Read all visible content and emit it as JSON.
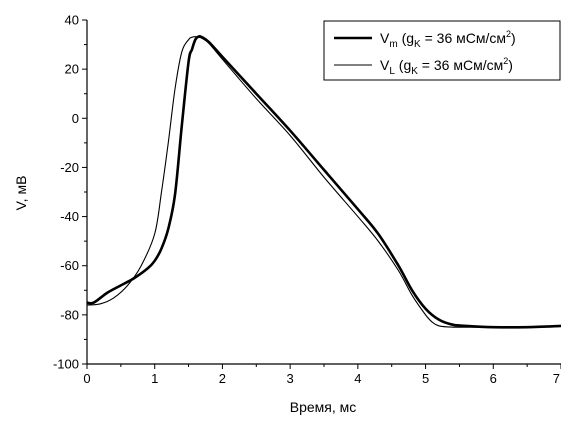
{
  "chart_data": {
    "type": "line",
    "title": "",
    "xlabel": "Время, мс",
    "ylabel": "V, мВ",
    "xlim": [
      0,
      7
    ],
    "ylim": [
      -100,
      40
    ],
    "x_ticks": [
      0,
      1,
      2,
      3,
      4,
      5,
      6,
      7
    ],
    "y_ticks": [
      -100,
      -80,
      -60,
      -40,
      -20,
      0,
      20,
      40
    ],
    "legend_placement": "top-right",
    "series": [
      {
        "name": "Vm (gK = 36 мСм/см²)",
        "legend_main": "V",
        "legend_sub": "m",
        "legend_text": " (g",
        "legend_sub2": "K",
        "legend_text2": " = 36 мСм/см",
        "legend_sup": "2",
        "legend_close": ")",
        "color": "#000000",
        "line_weight": "thick",
        "x": [
          0,
          0.1,
          0.3,
          0.5,
          0.7,
          0.9,
          1.0,
          1.1,
          1.2,
          1.3,
          1.4,
          1.5,
          1.55,
          1.6,
          1.65,
          1.7,
          1.8,
          2.0,
          2.5,
          3.0,
          3.5,
          4.0,
          4.3,
          4.6,
          4.8,
          5.0,
          5.2,
          5.4,
          5.6,
          6.0,
          6.5,
          7.0
        ],
        "y": [
          -75,
          -75,
          -71,
          -68,
          -65,
          -61,
          -58,
          -53,
          -45,
          -31,
          -3,
          23,
          28,
          32,
          33.3,
          33,
          31,
          25,
          10,
          -5,
          -21,
          -37,
          -47,
          -60,
          -70,
          -77.5,
          -82,
          -84,
          -84.5,
          -85,
          -85,
          -84.5
        ]
      },
      {
        "name": "VL (gK = 36 мСм/см²)",
        "legend_main": "V",
        "legend_sub": "L",
        "legend_text": " (g",
        "legend_sub2": "K",
        "legend_text2": " = 36 мСм/см",
        "legend_sup": "2",
        "legend_close": ")",
        "color": "#000000",
        "line_weight": "thin",
        "x": [
          0,
          0.2,
          0.4,
          0.6,
          0.8,
          1.0,
          1.1,
          1.2,
          1.3,
          1.4,
          1.5,
          1.55,
          1.6,
          1.65,
          1.7,
          1.8,
          2.0,
          2.5,
          3.0,
          3.5,
          4.0,
          4.3,
          4.6,
          4.8,
          5.0,
          5.1,
          5.2,
          5.4,
          5.6,
          6.0,
          6.5,
          7.0
        ],
        "y": [
          -76,
          -75.5,
          -73,
          -68,
          -60,
          -47,
          -30,
          -10,
          12,
          27,
          32,
          33,
          33.2,
          33,
          32.5,
          30.5,
          24,
          8,
          -7,
          -24,
          -40,
          -50,
          -62,
          -72,
          -80,
          -83,
          -84.5,
          -85,
          -85,
          -85,
          -85,
          -84.5
        ]
      }
    ]
  }
}
